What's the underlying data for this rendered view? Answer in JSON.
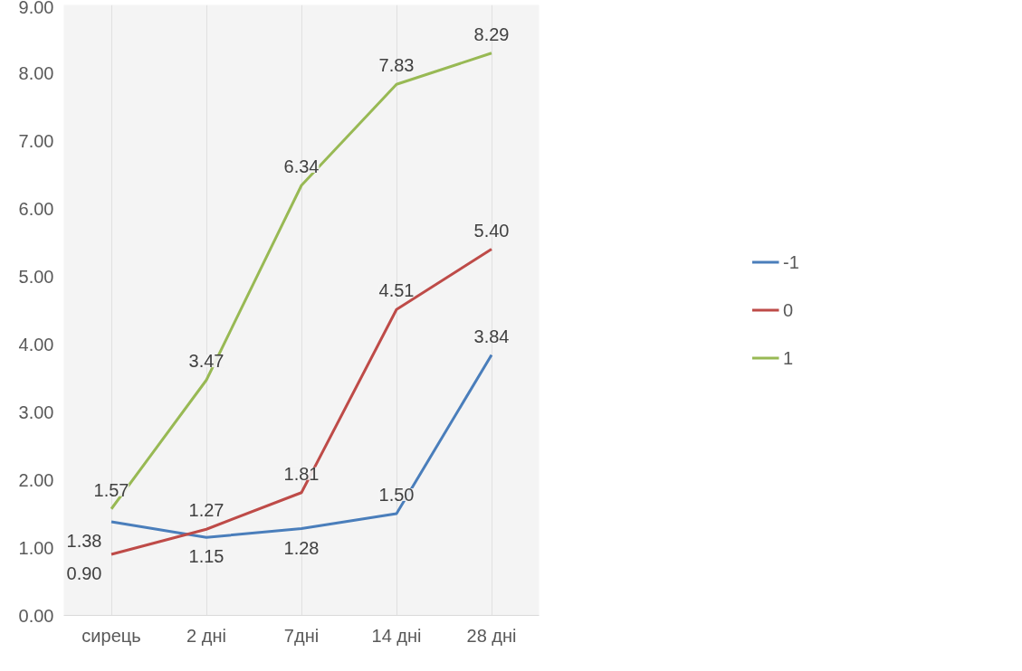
{
  "chart_data": {
    "type": "line",
    "categories": [
      "сирець",
      "2 дні",
      "7дні",
      "14 дні",
      "28 дні"
    ],
    "series": [
      {
        "name": "-1",
        "color": "#4a7ebb",
        "values": [
          1.38,
          1.15,
          1.28,
          1.5,
          3.84
        ],
        "value_labels": [
          "1.38",
          "1.15",
          "1.28",
          "1.50",
          "3.84"
        ]
      },
      {
        "name": "0",
        "color": "#be4b48",
        "values": [
          0.9,
          1.27,
          1.81,
          4.51,
          5.4
        ],
        "value_labels": [
          "0.90",
          "1.27",
          "1.81",
          "4.51",
          "5.40"
        ]
      },
      {
        "name": "1",
        "color": "#98b954",
        "values": [
          1.57,
          3.47,
          6.34,
          7.83,
          8.29
        ],
        "value_labels": [
          "1.57",
          "3.47",
          "6.34",
          "7.83",
          "8.29"
        ]
      }
    ],
    "ylim": [
      0,
      9
    ],
    "yticks": [
      {
        "value": 0,
        "label": "0.00"
      },
      {
        "value": 1,
        "label": "1.00"
      },
      {
        "value": 2,
        "label": "2.00"
      },
      {
        "value": 3,
        "label": "3.00"
      },
      {
        "value": 4,
        "label": "4.00"
      },
      {
        "value": 5,
        "label": "5.00"
      },
      {
        "value": 6,
        "label": "6.00"
      },
      {
        "value": 7,
        "label": "7.00"
      },
      {
        "value": 8,
        "label": "8.00"
      },
      {
        "value": 9,
        "label": "9.00"
      }
    ],
    "grid": "x",
    "legend": "right",
    "marker": "none",
    "line_style": "solid"
  }
}
